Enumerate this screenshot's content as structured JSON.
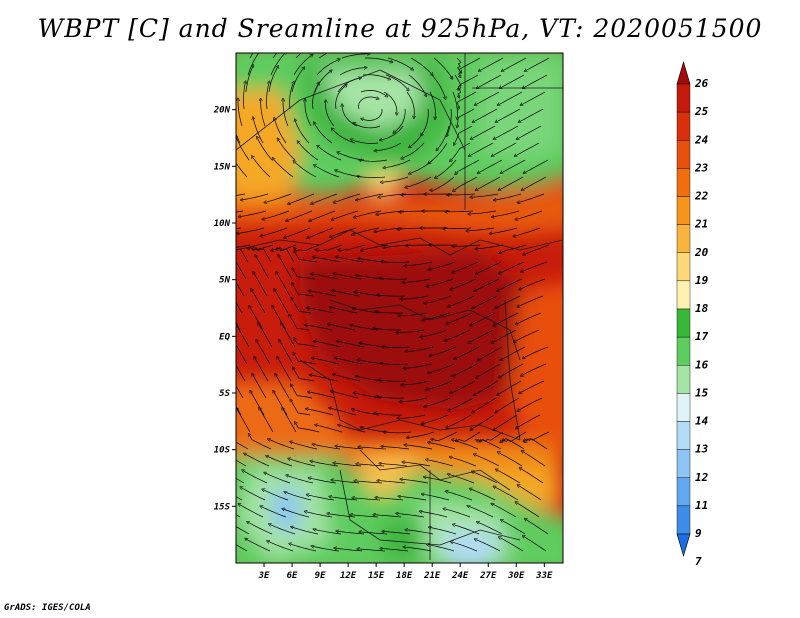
{
  "title": "WBPT [C] and Sreamline at 925hPa, VT: 2020051500",
  "credit": "GrADS: IGES/COLA",
  "map": {
    "lat_labels": [
      "20N",
      "15N",
      "10N",
      "5N",
      "EQ",
      "5S",
      "10S",
      "15S"
    ],
    "lon_labels": [
      "3E",
      "6E",
      "9E",
      "12E",
      "15E",
      "18E",
      "21E",
      "24E",
      "27E",
      "30E",
      "33E"
    ],
    "lat_values": [
      20,
      15,
      10,
      5,
      0,
      -5,
      -10,
      -15
    ],
    "lon_values": [
      3,
      6,
      9,
      12,
      15,
      18,
      21,
      24,
      27,
      30,
      33
    ],
    "lat_range": [
      -20,
      25
    ],
    "lon_range": [
      0,
      35
    ]
  },
  "colorbar": {
    "labels": [
      "26",
      "25",
      "24",
      "23",
      "22",
      "21",
      "20",
      "19",
      "18",
      "17",
      "16",
      "15",
      "14",
      "13",
      "12",
      "11",
      "9",
      "7"
    ],
    "colors": [
      "#a50a0a",
      "#c41a0a",
      "#d8300c",
      "#e8500e",
      "#f06e10",
      "#f5961a",
      "#f8b43c",
      "#fcd878",
      "#fff2b0",
      "#38b838",
      "#5ecc5e",
      "#a6e4a6",
      "#e0f4f8",
      "#b4dcf8",
      "#8cc4f4",
      "#62a8f0",
      "#3c8ce8",
      "#1a6ee0"
    ]
  }
}
